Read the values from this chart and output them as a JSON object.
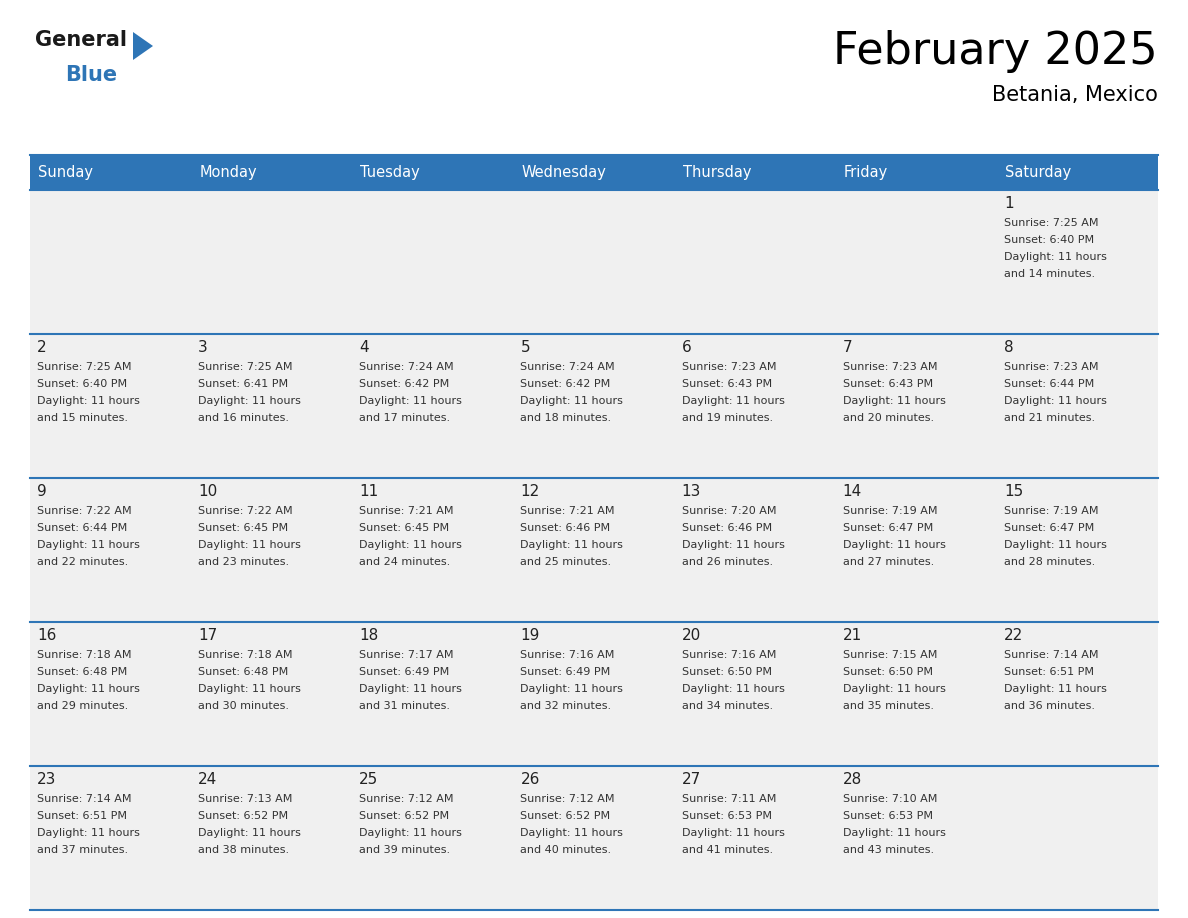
{
  "title": "February 2025",
  "subtitle": "Betania, Mexico",
  "days_of_week": [
    "Sunday",
    "Monday",
    "Tuesday",
    "Wednesday",
    "Thursday",
    "Friday",
    "Saturday"
  ],
  "header_bg": "#2e75b6",
  "header_text": "#ffffff",
  "cell_bg": "#f0f0f0",
  "divider_color": "#2e75b6",
  "text_color": "#333333",
  "day_num_color": "#222222",
  "calendar_data": [
    [
      null,
      null,
      null,
      null,
      null,
      null,
      {
        "day": 1,
        "sunrise": "7:25 AM",
        "sunset": "6:40 PM",
        "daylight": "11 hours and 14 minutes."
      }
    ],
    [
      {
        "day": 2,
        "sunrise": "7:25 AM",
        "sunset": "6:40 PM",
        "daylight": "11 hours and 15 minutes."
      },
      {
        "day": 3,
        "sunrise": "7:25 AM",
        "sunset": "6:41 PM",
        "daylight": "11 hours and 16 minutes."
      },
      {
        "day": 4,
        "sunrise": "7:24 AM",
        "sunset": "6:42 PM",
        "daylight": "11 hours and 17 minutes."
      },
      {
        "day": 5,
        "sunrise": "7:24 AM",
        "sunset": "6:42 PM",
        "daylight": "11 hours and 18 minutes."
      },
      {
        "day": 6,
        "sunrise": "7:23 AM",
        "sunset": "6:43 PM",
        "daylight": "11 hours and 19 minutes."
      },
      {
        "day": 7,
        "sunrise": "7:23 AM",
        "sunset": "6:43 PM",
        "daylight": "11 hours and 20 minutes."
      },
      {
        "day": 8,
        "sunrise": "7:23 AM",
        "sunset": "6:44 PM",
        "daylight": "11 hours and 21 minutes."
      }
    ],
    [
      {
        "day": 9,
        "sunrise": "7:22 AM",
        "sunset": "6:44 PM",
        "daylight": "11 hours and 22 minutes."
      },
      {
        "day": 10,
        "sunrise": "7:22 AM",
        "sunset": "6:45 PM",
        "daylight": "11 hours and 23 minutes."
      },
      {
        "day": 11,
        "sunrise": "7:21 AM",
        "sunset": "6:45 PM",
        "daylight": "11 hours and 24 minutes."
      },
      {
        "day": 12,
        "sunrise": "7:21 AM",
        "sunset": "6:46 PM",
        "daylight": "11 hours and 25 minutes."
      },
      {
        "day": 13,
        "sunrise": "7:20 AM",
        "sunset": "6:46 PM",
        "daylight": "11 hours and 26 minutes."
      },
      {
        "day": 14,
        "sunrise": "7:19 AM",
        "sunset": "6:47 PM",
        "daylight": "11 hours and 27 minutes."
      },
      {
        "day": 15,
        "sunrise": "7:19 AM",
        "sunset": "6:47 PM",
        "daylight": "11 hours and 28 minutes."
      }
    ],
    [
      {
        "day": 16,
        "sunrise": "7:18 AM",
        "sunset": "6:48 PM",
        "daylight": "11 hours and 29 minutes."
      },
      {
        "day": 17,
        "sunrise": "7:18 AM",
        "sunset": "6:48 PM",
        "daylight": "11 hours and 30 minutes."
      },
      {
        "day": 18,
        "sunrise": "7:17 AM",
        "sunset": "6:49 PM",
        "daylight": "11 hours and 31 minutes."
      },
      {
        "day": 19,
        "sunrise": "7:16 AM",
        "sunset": "6:49 PM",
        "daylight": "11 hours and 32 minutes."
      },
      {
        "day": 20,
        "sunrise": "7:16 AM",
        "sunset": "6:50 PM",
        "daylight": "11 hours and 34 minutes."
      },
      {
        "day": 21,
        "sunrise": "7:15 AM",
        "sunset": "6:50 PM",
        "daylight": "11 hours and 35 minutes."
      },
      {
        "day": 22,
        "sunrise": "7:14 AM",
        "sunset": "6:51 PM",
        "daylight": "11 hours and 36 minutes."
      }
    ],
    [
      {
        "day": 23,
        "sunrise": "7:14 AM",
        "sunset": "6:51 PM",
        "daylight": "11 hours and 37 minutes."
      },
      {
        "day": 24,
        "sunrise": "7:13 AM",
        "sunset": "6:52 PM",
        "daylight": "11 hours and 38 minutes."
      },
      {
        "day": 25,
        "sunrise": "7:12 AM",
        "sunset": "6:52 PM",
        "daylight": "11 hours and 39 minutes."
      },
      {
        "day": 26,
        "sunrise": "7:12 AM",
        "sunset": "6:52 PM",
        "daylight": "11 hours and 40 minutes."
      },
      {
        "day": 27,
        "sunrise": "7:11 AM",
        "sunset": "6:53 PM",
        "daylight": "11 hours and 41 minutes."
      },
      {
        "day": 28,
        "sunrise": "7:10 AM",
        "sunset": "6:53 PM",
        "daylight": "11 hours and 43 minutes."
      },
      null
    ]
  ],
  "logo_text_general": "General",
  "logo_text_blue": "Blue",
  "logo_triangle_color": "#2e75b6"
}
